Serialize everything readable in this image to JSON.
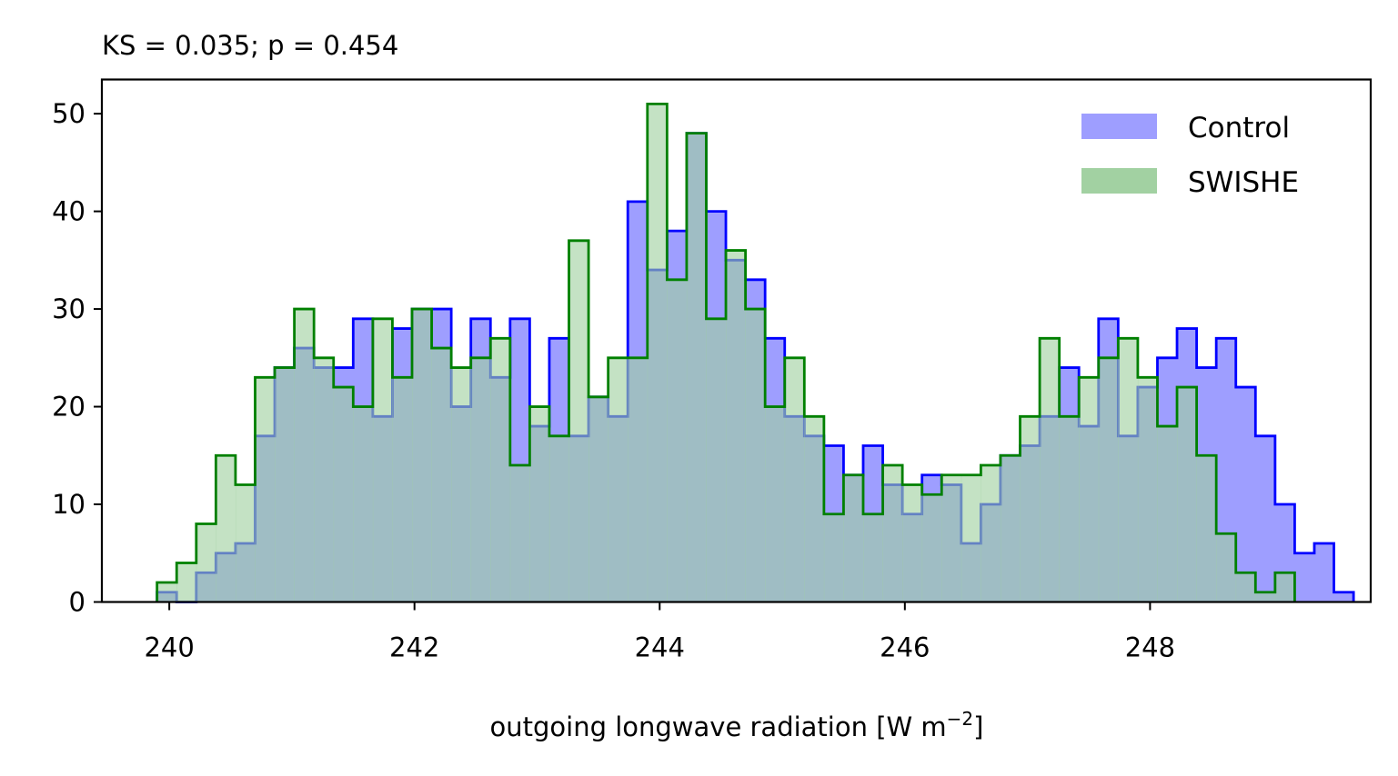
{
  "chart_data": {
    "type": "histogram",
    "title": "KS = 0.035; p = 0.454",
    "xlabel": "outgoing longwave radiation [W m",
    "xlabel_sup": "−2",
    "xlabel_end": "]",
    "xlim": [
      239.45,
      249.8
    ],
    "ylim": [
      0,
      53.5
    ],
    "x_ticks": [
      240,
      242,
      244,
      246,
      248
    ],
    "y_ticks": [
      0,
      10,
      20,
      30,
      40,
      50
    ],
    "bins": {
      "start": 239.9,
      "width": 0.16
    },
    "legend_position": "top-right",
    "grid": false,
    "series": [
      {
        "name": "Control",
        "fill_color": "#9e9eff",
        "edge_color": "#0000ff",
        "values": [
          1,
          0,
          3,
          5,
          6,
          17,
          24,
          26,
          24,
          24,
          29,
          19,
          28,
          30,
          30,
          20,
          29,
          23,
          29,
          18,
          27,
          17,
          21,
          19,
          41,
          34,
          38,
          48,
          40,
          35,
          33,
          27,
          19,
          17,
          16,
          13,
          16,
          12,
          9,
          13,
          12,
          6,
          10,
          15,
          16,
          19,
          24,
          18,
          29,
          17,
          22,
          25,
          28,
          24,
          27,
          22,
          17,
          10,
          5,
          6,
          1
        ]
      },
      {
        "name": "SWISHE",
        "fill_color": "#a0d0a0",
        "edge_color": "#008000",
        "values": [
          2,
          4,
          8,
          15,
          12,
          23,
          24,
          30,
          25,
          22,
          20,
          29,
          23,
          30,
          26,
          24,
          25,
          27,
          14,
          20,
          17,
          37,
          21,
          25,
          25,
          51,
          33,
          48,
          29,
          36,
          30,
          20,
          25,
          19,
          9,
          13,
          9,
          14,
          12,
          11,
          13,
          13,
          14,
          15,
          19,
          27,
          19,
          23,
          25,
          27,
          23,
          18,
          22,
          15,
          7,
          3,
          1,
          3
        ]
      }
    ]
  }
}
